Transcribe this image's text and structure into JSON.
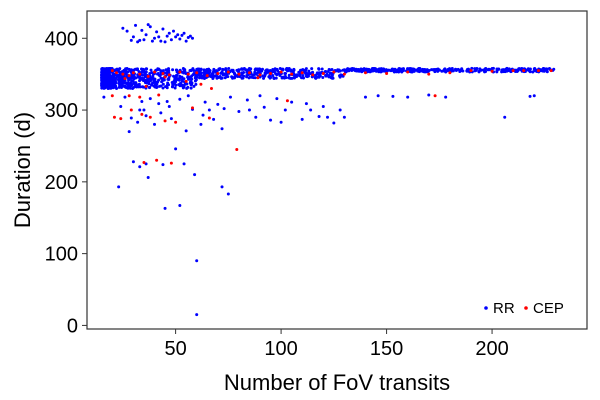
{
  "chart_data": {
    "type": "scatter",
    "title": "",
    "xlabel": "Number of FoV transits",
    "ylabel": "Duration (d)",
    "xlim": [
      8,
      245
    ],
    "ylim": [
      -5,
      438
    ],
    "xticks": [
      50,
      100,
      150,
      200
    ],
    "yticks": [
      0,
      100,
      200,
      300,
      400
    ],
    "grid": false,
    "legend_position": "bottom-right",
    "series": [
      {
        "name": "RR",
        "color": "#0000ff",
        "points": [
          [
            60,
            15
          ],
          [
            60,
            90
          ],
          [
            23,
            193
          ],
          [
            72,
            193
          ],
          [
            75,
            183
          ],
          [
            45,
            163
          ],
          [
            52,
            167
          ],
          [
            59,
            210
          ],
          [
            30,
            228
          ],
          [
            36,
            225
          ],
          [
            37,
            206
          ],
          [
            44,
            224
          ],
          [
            54,
            225
          ],
          [
            50,
            246
          ],
          [
            33,
            221
          ],
          [
            28,
            270
          ],
          [
            32,
            283
          ],
          [
            35,
            300
          ],
          [
            40,
            280
          ],
          [
            43,
            296
          ],
          [
            48,
            288
          ],
          [
            55,
            271
          ],
          [
            63,
            293
          ],
          [
            68,
            287
          ],
          [
            72,
            274
          ],
          [
            80,
            298
          ],
          [
            88,
            290
          ],
          [
            95,
            286
          ],
          [
            100,
            283
          ],
          [
            110,
            287
          ],
          [
            118,
            291
          ],
          [
            125,
            282
          ],
          [
            130,
            290
          ],
          [
            140,
            318
          ],
          [
            146,
            320
          ],
          [
            153,
            319
          ],
          [
            160,
            318
          ],
          [
            170,
            321
          ],
          [
            178,
            318
          ],
          [
            206,
            290
          ],
          [
            218,
            319
          ],
          [
            220,
            320
          ],
          [
            24,
            305
          ],
          [
            26,
            318
          ],
          [
            34,
            312
          ],
          [
            38,
            316
          ],
          [
            42,
            309
          ],
          [
            46,
            312
          ],
          [
            52,
            315
          ],
          [
            56,
            320
          ],
          [
            64,
            311
          ],
          [
            70,
            308
          ],
          [
            76,
            318
          ],
          [
            84,
            314
          ],
          [
            92,
            304
          ],
          [
            98,
            316
          ],
          [
            105,
            311
          ],
          [
            112,
            309
          ],
          [
            120,
            305
          ],
          [
            128,
            300
          ],
          [
            16,
            318
          ],
          [
            18,
            330
          ],
          [
            19,
            345
          ],
          [
            22,
            330
          ],
          [
            33,
            300
          ],
          [
            29,
            289
          ],
          [
            47,
            305
          ],
          [
            62,
            280
          ],
          [
            66,
            300
          ],
          [
            73,
            302
          ],
          [
            85,
            300
          ],
          [
            90,
            320
          ],
          [
            102,
            300
          ],
          [
            114,
            300
          ],
          [
            122,
            290
          ],
          [
            36,
            292
          ],
          [
            58,
            301
          ],
          [
            25,
            414
          ],
          [
            27,
            410
          ],
          [
            30,
            402
          ],
          [
            31,
            418
          ],
          [
            33,
            397
          ],
          [
            34,
            411
          ],
          [
            36,
            405
          ],
          [
            38,
            416
          ],
          [
            40,
            400
          ],
          [
            41,
            409
          ],
          [
            43,
            396
          ],
          [
            44,
            413
          ],
          [
            46,
            403
          ],
          [
            48,
            398
          ],
          [
            49,
            410
          ],
          [
            51,
            405
          ],
          [
            52,
            399
          ],
          [
            54,
            407
          ],
          [
            56,
            401
          ],
          [
            58,
            400
          ],
          [
            32,
            395
          ],
          [
            35,
            398
          ],
          [
            39,
            396
          ],
          [
            42,
            402
          ],
          [
            45,
            395
          ],
          [
            47,
            407
          ],
          [
            50,
            402
          ],
          [
            53,
            404
          ],
          [
            55,
            396
          ],
          [
            57,
            403
          ],
          [
            37,
            419
          ],
          [
            29,
            397
          ]
        ]
      },
      {
        "name": "CEP",
        "color": "#ff0000",
        "points": [
          [
            20,
            355
          ],
          [
            22,
            352
          ],
          [
            25,
            350
          ],
          [
            28,
            348
          ],
          [
            30,
            352
          ],
          [
            33,
            350
          ],
          [
            37,
            347
          ],
          [
            40,
            353
          ],
          [
            44,
            351
          ],
          [
            47,
            349
          ],
          [
            52,
            353
          ],
          [
            56,
            350
          ],
          [
            60,
            352
          ],
          [
            65,
            348
          ],
          [
            70,
            351
          ],
          [
            75,
            353
          ],
          [
            80,
            350
          ],
          [
            85,
            352
          ],
          [
            90,
            349
          ],
          [
            95,
            351
          ],
          [
            100,
            353
          ],
          [
            105,
            350
          ],
          [
            110,
            352
          ],
          [
            115,
            349
          ],
          [
            120,
            351
          ],
          [
            125,
            353
          ],
          [
            130,
            350
          ],
          [
            140,
            352
          ],
          [
            150,
            351
          ],
          [
            160,
            353
          ],
          [
            170,
            350
          ],
          [
            180,
            352
          ],
          [
            190,
            355
          ],
          [
            200,
            354
          ],
          [
            210,
            355
          ],
          [
            215,
            355
          ],
          [
            222,
            355
          ],
          [
            228,
            355
          ],
          [
            21,
            290
          ],
          [
            24,
            288
          ],
          [
            29,
            300
          ],
          [
            34,
            294
          ],
          [
            38,
            290
          ],
          [
            45,
            285
          ],
          [
            50,
            283
          ],
          [
            58,
            303
          ],
          [
            66,
            289
          ],
          [
            79,
            245
          ],
          [
            103,
            313
          ],
          [
            173,
            320
          ],
          [
            35,
            227
          ],
          [
            41,
            230
          ],
          [
            48,
            226
          ],
          [
            28,
            320
          ],
          [
            33,
            318
          ],
          [
            42,
            321
          ],
          [
            55,
            340
          ],
          [
            62,
            336
          ],
          [
            36,
            333
          ],
          [
            67,
            330
          ],
          [
            26,
            344
          ],
          [
            20,
            320
          ],
          [
            45,
            346
          ],
          [
            89,
            345
          ]
        ]
      }
    ],
    "dense_band": {
      "series": "RR",
      "x_start": [
        15,
        240
      ],
      "y_top": [
        360,
        358
      ],
      "y_bottom": [
        330,
        353
      ],
      "note_free": true
    }
  },
  "legend": {
    "items": [
      {
        "label": "RR",
        "color": "#0000ff"
      },
      {
        "label": "CEP",
        "color": "#ff0000"
      }
    ]
  }
}
